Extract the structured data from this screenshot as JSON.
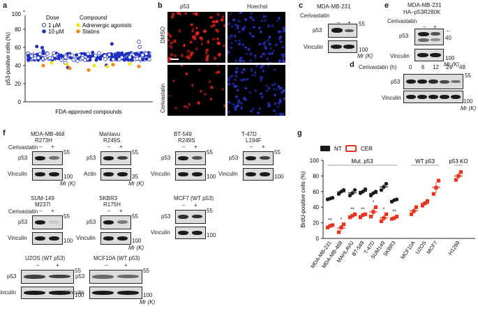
{
  "panels": {
    "a": "a",
    "b": "b",
    "c": "c",
    "d": "d",
    "e": "e",
    "f": "f",
    "g": "g"
  },
  "panel_a": {
    "ylabel": "p53-positive cells (%)",
    "xlabel": "FDA-approved compounds",
    "legend_dose_title": "Dose",
    "legend_dose_1": "1 μM",
    "legend_dose_10": "10 μM",
    "legend_compound_title": "Compound",
    "legend_compound_1": "Adrenergic agonists",
    "legend_compound_2": "Statins",
    "colors": {
      "dose_10": "#1f2fbf",
      "adrenergic": "#f2e21a",
      "statin": "#f08a1c"
    }
  },
  "panel_b": {
    "col1": "p53",
    "col2": "Hoechst",
    "row1": "DMSO",
    "row2": "Cerivastatin"
  },
  "panel_c": {
    "title": "MDA-MB-231",
    "treatment": "Cerivastatin",
    "minus": "–",
    "plus": "+",
    "row1": "p53",
    "row2": "Vinculin",
    "mw1": "55",
    "mw2": "100",
    "mw_unit": "Mr (K)"
  },
  "panel_e": {
    "title1": "MDA-MB-231",
    "title2": "HA–p53R280K",
    "treatment": "Cerivastatin",
    "minus": "–",
    "plus": "+",
    "row1": "p53",
    "row2": "Vinculin",
    "mw1": "40",
    "mw2": "100",
    "mw_unit": "Mr (K)",
    "arrow": "←"
  },
  "panel_d": {
    "treatment": "Cerivastatin (h)",
    "times": [
      "0",
      "6",
      "12",
      "24",
      "48"
    ],
    "row1": "p53",
    "row2": "Vinculin",
    "mw1": "55",
    "mw2": "100",
    "mw_unit": "Mr (K)"
  },
  "panel_f": {
    "treatment": "Cerivastatin",
    "minus": "–",
    "plus": "+",
    "mw_unit": "Mr (K)",
    "blots": [
      {
        "t1": "MDA-MB-468",
        "t2": "R273H",
        "r1": "p53",
        "r2": "Vinculin",
        "m1": "55",
        "m2": "100"
      },
      {
        "t1": "Mahlavu",
        "t2": "R249S",
        "r1": "p53",
        "r2": "Actin",
        "m1": "55",
        "m2": "35"
      },
      {
        "t1": "BT-549",
        "t2": "R249S",
        "r1": "p53",
        "r2": "Vinculin",
        "m1": "55",
        "m2": "100"
      },
      {
        "t1": "T-47D",
        "t2": "L194F",
        "r1": "p53",
        "r2": "Vinculin",
        "m1": "55",
        "m2": "100"
      },
      {
        "t1": "SUM-149",
        "t2": "M237I",
        "r1": "p53",
        "r2": "Vinculin",
        "m1": "55",
        "m2": "100"
      },
      {
        "t1": "SKBR3",
        "t2": "R175H",
        "r1": "p53",
        "r2": "Vinculin",
        "m1": "55",
        "m2": "100"
      },
      {
        "t1": "MCF7 (WT p53)",
        "t2": "",
        "r1": "p53",
        "r2": "Vinculin",
        "m1": "55",
        "m2": "100"
      },
      {
        "t1": "U2OS (WT p53)",
        "t2": "",
        "r1": "p53",
        "r2": "Vinculin",
        "m1": "55",
        "m2": "100"
      },
      {
        "t1": "MCF10A (WT p53)",
        "t2": "",
        "r1": "p53",
        "r2": "Vinculin",
        "m1": "55",
        "m2": "100"
      }
    ]
  },
  "chart_data": {
    "type": "scatter",
    "ylabel": "BrdU-positive cells (%)",
    "ylim": [
      0,
      100
    ],
    "yticks": [
      "0",
      "20",
      "40",
      "60",
      "80",
      "100"
    ],
    "legend": [
      "NT",
      "CER"
    ],
    "group_labels": [
      "Mut. p53",
      "WT p53",
      "p53 KO"
    ],
    "categories": [
      "MDA-MB-231",
      "MDA-MB-468",
      "MAHLAVU",
      "BT-549",
      "T-47D",
      "SUM149",
      "SKBR3",
      "MCF10A",
      "U2OS",
      "MCF7",
      "H1299"
    ],
    "significance": [
      "**",
      "*",
      "**",
      "**",
      "*",
      "*",
      "**",
      "",
      "",
      "",
      ""
    ],
    "series": [
      {
        "name": "NT",
        "color": "#1a1a1a",
        "values": [
          [
            50,
            51,
            52
          ],
          [
            57,
            60,
            62
          ],
          [
            55,
            58,
            62
          ],
          [
            58,
            60,
            63
          ],
          [
            55,
            58,
            60
          ],
          [
            62,
            66,
            70
          ],
          [
            47,
            49,
            50
          ],
          null,
          null,
          null,
          null
        ]
      },
      {
        "name": "CER",
        "color": "#e8321e",
        "values": [
          [
            14,
            16,
            17
          ],
          [
            8,
            14,
            18
          ],
          [
            27,
            29,
            31
          ],
          [
            27,
            30,
            31
          ],
          [
            28,
            34,
            40
          ],
          [
            22,
            26,
            31
          ],
          [
            25,
            26,
            28
          ],
          [
            31,
            35,
            40
          ],
          [
            42,
            45,
            48
          ],
          [
            57,
            65,
            74
          ],
          [
            75,
            80,
            85
          ]
        ]
      }
    ]
  }
}
